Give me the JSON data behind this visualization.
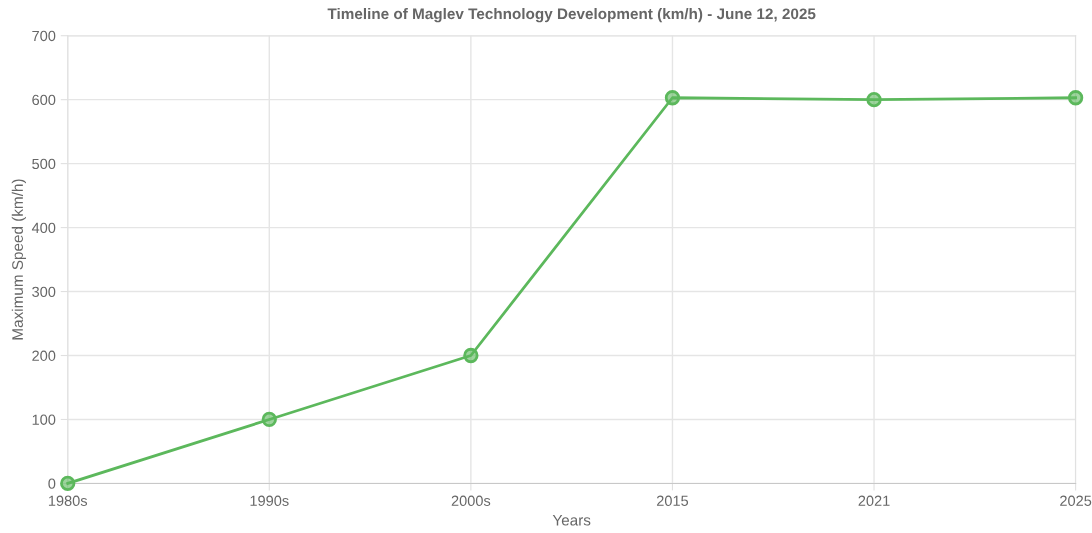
{
  "chart_data": {
    "type": "line",
    "title": "Timeline of Maglev Technology Development (km/h) - June 12, 2025",
    "xlabel": "Years",
    "ylabel": "Maximum Speed (km/h)",
    "categories": [
      "1980s",
      "1990s",
      "2000s",
      "2015",
      "2021",
      "2025"
    ],
    "series": [
      {
        "color": "#5cb85c",
        "values": [
          0,
          100,
          200,
          603,
          600,
          603
        ]
      }
    ],
    "ylim": [
      0,
      700
    ],
    "yticks": [
      0,
      100,
      200,
      300,
      400,
      500,
      600,
      700
    ],
    "grid": true,
    "marker": "circle",
    "line_style": "solid"
  }
}
